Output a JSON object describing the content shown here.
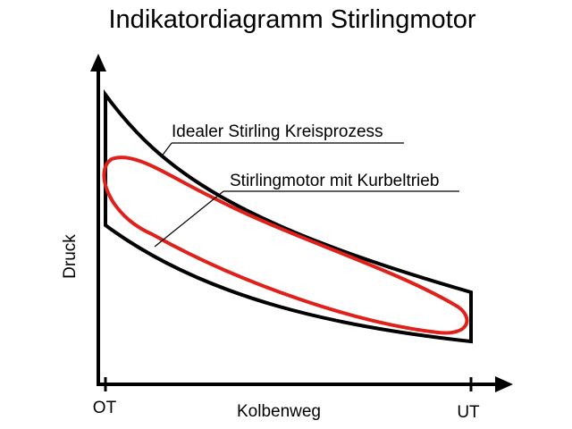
{
  "title": "Indikatordiagramm Stirlingmotor",
  "labels": {
    "ideal": "Idealer Stirling Kreisprozess",
    "real": "Stirlingmotor mit Kurbeltrieb",
    "y_axis": "Druck",
    "x_axis": "Kolbenweg",
    "ot": "OT",
    "ut": "UT"
  },
  "colors": {
    "ideal_cycle": "#000000",
    "real_cycle": "#e0201b",
    "axes": "#000000"
  }
}
